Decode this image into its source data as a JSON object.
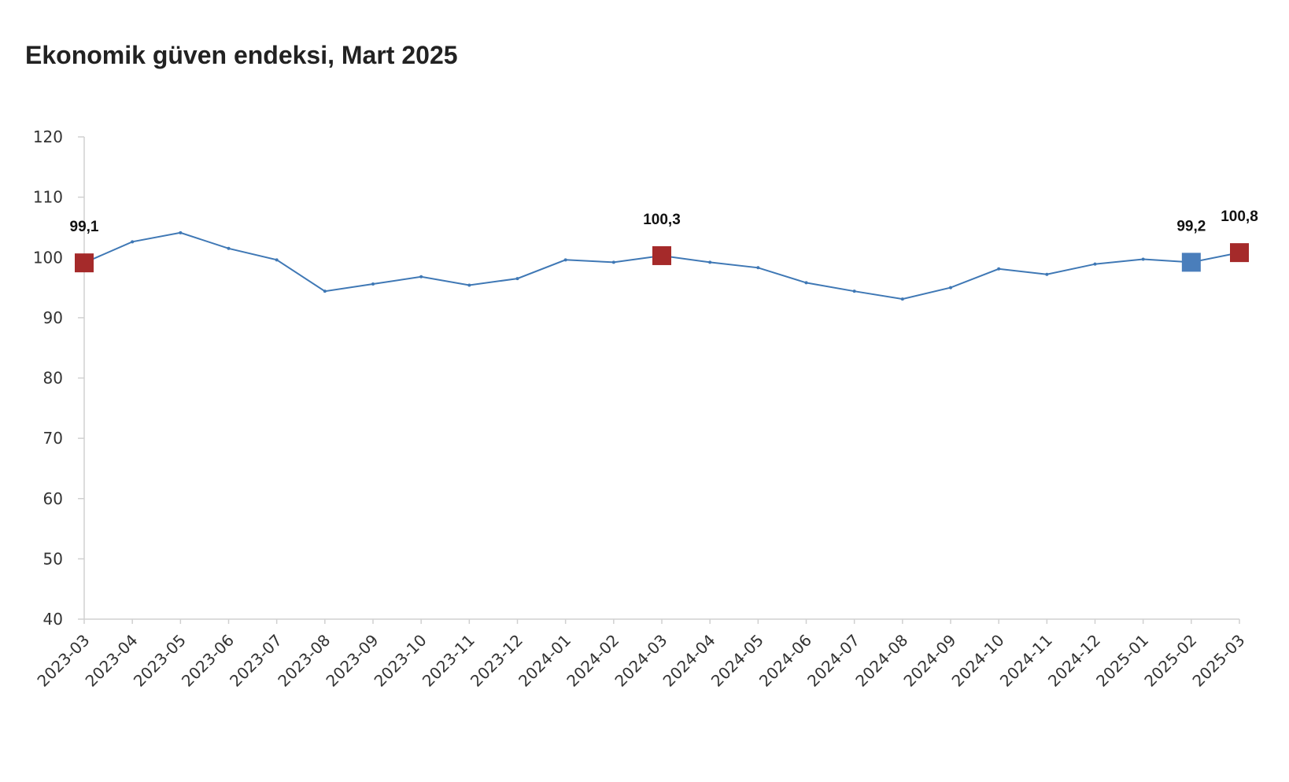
{
  "chart_data": {
    "type": "line",
    "title": "Ekonomik güven endeksi, Mart 2025",
    "xlabel": "",
    "ylabel": "",
    "ylim": [
      40,
      120
    ],
    "yticks": [
      "120",
      "110",
      "100",
      "90",
      "80",
      "70",
      "60",
      "50",
      "40"
    ],
    "grid": false,
    "legend": "none",
    "categories": [
      "2023-03",
      "2023-04",
      "2023-05",
      "2023-06",
      "2023-07",
      "2023-08",
      "2023-09",
      "2023-10",
      "2023-11",
      "2023-12",
      "2024-01",
      "2024-02",
      "2024-03",
      "2024-04",
      "2024-05",
      "2024-06",
      "2024-07",
      "2024-08",
      "2024-09",
      "2024-10",
      "2024-11",
      "2024-12",
      "2025-01",
      "2025-02",
      "2025-03"
    ],
    "series": [
      {
        "values": [
          99.1,
          102.6,
          104.1,
          101.5,
          99.6,
          94.4,
          95.6,
          96.8,
          95.4,
          96.5,
          99.6,
          99.2,
          100.3,
          99.2,
          98.3,
          95.8,
          94.4,
          93.1,
          95.0,
          98.1,
          97.2,
          98.9,
          99.7,
          99.2,
          100.8
        ],
        "color": "#3f78b5"
      }
    ],
    "highlights": [
      {
        "index": 0,
        "label": "99,1",
        "color": "#a52a2a"
      },
      {
        "index": 12,
        "label": "100,3",
        "color": "#a52a2a"
      },
      {
        "index": 23,
        "label": "99,2",
        "color": "#4a7ebb"
      },
      {
        "index": 24,
        "label": "100,8",
        "color": "#a52a2a"
      }
    ],
    "colors": {
      "axis": "#d0d0d0",
      "line": "#3f78b5",
      "highlight_red": "#a52a2a",
      "highlight_blue": "#4a7ebb"
    }
  }
}
